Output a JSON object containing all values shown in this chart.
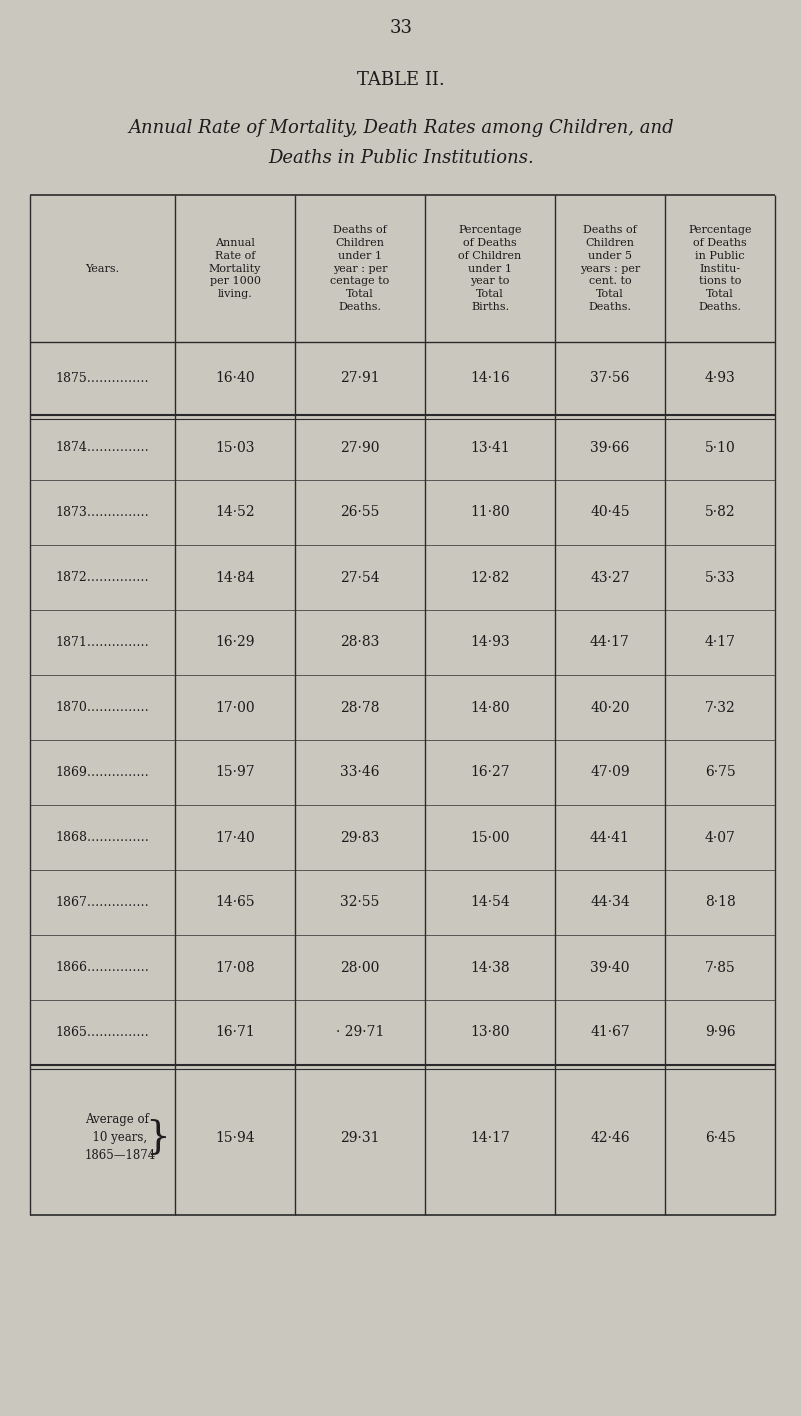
{
  "page_number": "33",
  "table_title": "TABLE II.",
  "table_subtitle_line1": "Annual Rate of Mortality, Death Rates among Children, and",
  "table_subtitle_line2": "Deaths in Public Institutions.",
  "col_headers": [
    "Years.",
    "Annual\nRate of\nMortality\nper 1000\nliving.",
    "Deaths of\nChildren\nunder 1\nyear : per\ncentage to\nTotal\nDeaths.",
    "Percentage\nof Deaths\nof Children\nunder 1\nyear to\nTotal\nBirths.",
    "Deaths of\nChildren\nunder 5\nyears : per\ncent. to\nTotal\nDeaths.",
    "Percentage\nof Deaths\nin Public\nInstitu-\ntions to\nTotal\nDeaths."
  ],
  "rows": [
    [
      "1875……………",
      "16·40",
      "27·91",
      "14·16",
      "37·56",
      "4·93"
    ],
    [
      "1874……………",
      "15·03",
      "27·90",
      "13·41",
      "39·66",
      "5·10"
    ],
    [
      "1873……………",
      "14·52",
      "26·55",
      "11·80",
      "40·45",
      "5·82"
    ],
    [
      "1872……………",
      "14·84",
      "27·54",
      "12·82",
      "43·27",
      "5·33"
    ],
    [
      "1871……………",
      "16·29",
      "28·83",
      "14·93",
      "44·17",
      "4·17"
    ],
    [
      "1870……………",
      "17·00",
      "28·78",
      "14·80",
      "40·20",
      "7·32"
    ],
    [
      "1869……………",
      "15·97",
      "33·46",
      "16·27",
      "47·09",
      "6·75"
    ],
    [
      "1868……………",
      "17·40",
      "29·83",
      "15·00",
      "44·41",
      "4·07"
    ],
    [
      "1867……………",
      "14·65",
      "32·55",
      "14·54",
      "44·34",
      "8·18"
    ],
    [
      "1866……………",
      "17·08",
      "28·00",
      "14·38",
      "39·40",
      "7·85"
    ],
    [
      "1865……………",
      "16·71",
      "· 29·71",
      "13·80",
      "41·67",
      "9·96"
    ]
  ],
  "avg_label_lines": [
    "Average of",
    "  10 years,",
    "1865—1874"
  ],
  "avg_row_values": [
    "15·94",
    "29·31",
    "14·17",
    "42·46",
    "6·45"
  ],
  "bg_color": "#cac7be",
  "text_color": "#1c1c1c",
  "line_color": "#2a2a2a"
}
